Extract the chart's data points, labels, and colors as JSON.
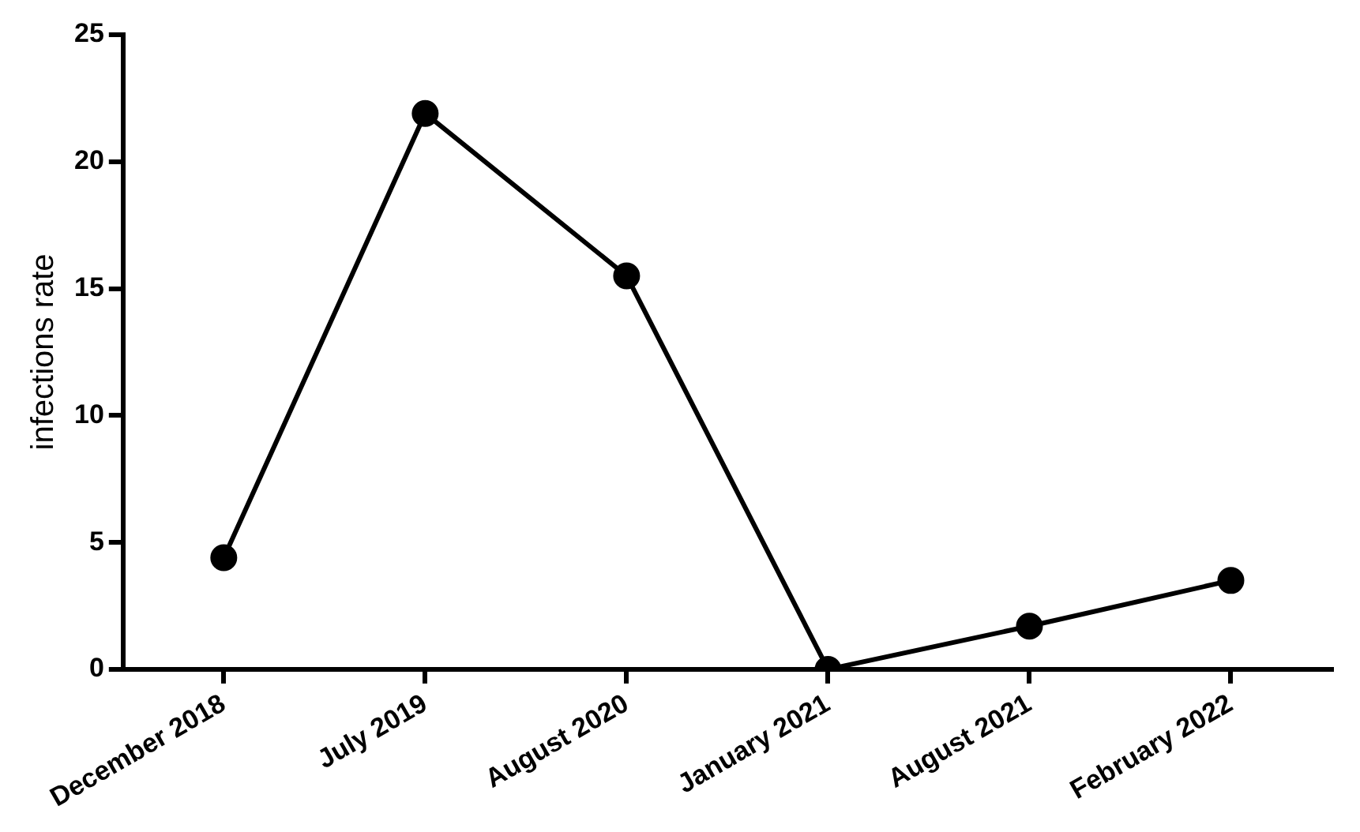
{
  "chart_data": {
    "type": "line",
    "ylabel": "infections rate",
    "categories": [
      "December 2018",
      "July 2019",
      "August 2020",
      "January 2021",
      "August 2021",
      "February 2022"
    ],
    "series": [
      {
        "color": "#000000",
        "values": [
          4.4,
          21.9,
          15.5,
          0,
          1.7,
          3.5
        ]
      }
    ],
    "ylim": [
      0,
      25
    ],
    "yticks": [
      0,
      5,
      10,
      15,
      20,
      25
    ],
    "grid": false,
    "legend": false,
    "marker": "circle",
    "line_style": "solid"
  }
}
